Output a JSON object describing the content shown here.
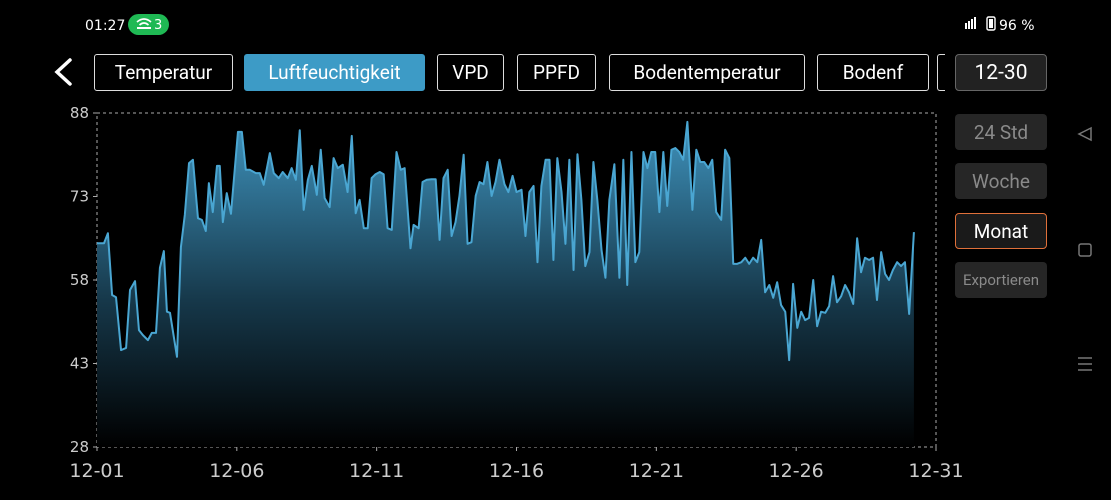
{
  "status_bar": {
    "time": "01:27",
    "notification_count": "3",
    "battery": "96 %"
  },
  "tabs": [
    "Temperatur",
    "Luftfeuchtigkeit",
    "VPD",
    "PPFD",
    "Bodentemperatur",
    "Bodenf"
  ],
  "date": "12-30",
  "ranges": [
    "24 Std",
    "Woche",
    "Monat"
  ],
  "export": "Exportieren",
  "chart_data": {
    "type": "area",
    "color": "#4aa6d2",
    "xlim": [
      1,
      31
    ],
    "xticks": [
      {
        "value": 1,
        "label": "12-01"
      },
      {
        "value": 6,
        "label": "12-06"
      },
      {
        "value": 11,
        "label": "12-11"
      },
      {
        "value": 16,
        "label": "12-16"
      },
      {
        "value": 21,
        "label": "12-21"
      },
      {
        "value": 26,
        "label": "12-26"
      },
      {
        "value": 31,
        "label": "12-31"
      }
    ],
    "ylim": [
      28,
      88
    ],
    "yticks": [
      28,
      43,
      58,
      73,
      88
    ],
    "grid": false,
    "x": [
      1.0,
      1.25,
      1.39,
      1.54,
      1.68,
      1.86,
      2.04,
      2.18,
      2.36,
      2.5,
      2.64,
      2.82,
      2.96,
      3.11,
      3.25,
      3.39,
      3.5,
      3.61,
      3.86,
      4.0,
      4.14,
      4.29,
      4.43,
      4.61,
      4.75,
      4.89,
      5.0,
      5.14,
      5.29,
      5.39,
      5.5,
      5.64,
      5.79,
      6.04,
      6.18,
      6.32,
      6.46,
      6.68,
      6.82,
      6.96,
      7.18,
      7.32,
      7.5,
      7.64,
      7.82,
      7.96,
      8.11,
      8.25,
      8.39,
      8.54,
      8.68,
      8.86,
      9.0,
      9.14,
      9.32,
      9.46,
      9.61,
      9.79,
      9.96,
      10.11,
      10.25,
      10.39,
      10.54,
      10.68,
      10.82,
      10.96,
      11.11,
      11.25,
      11.39,
      11.54,
      11.71,
      11.86,
      12.0,
      12.21,
      12.32,
      12.5,
      12.64,
      12.79,
      12.96,
      13.11,
      13.25,
      13.39,
      13.54,
      13.68,
      13.82,
      13.96,
      14.11,
      14.25,
      14.39,
      14.54,
      14.68,
      14.82,
      14.96,
      15.11,
      15.25,
      15.39,
      15.57,
      15.71,
      15.86,
      16.0,
      16.18,
      16.32,
      16.46,
      16.61,
      16.75,
      16.89,
      17.04,
      17.18,
      17.32,
      17.46,
      17.61,
      17.75,
      17.89,
      18.04,
      18.18,
      18.32,
      18.46,
      18.61,
      18.75,
      18.89,
      19.04,
      19.18,
      19.32,
      19.5,
      19.68,
      19.82,
      19.96,
      20.11,
      20.25,
      20.39,
      20.54,
      20.68,
      20.82,
      20.96,
      21.11,
      21.25,
      21.39,
      21.54,
      21.68,
      21.82,
      21.96,
      22.11,
      22.29,
      22.43,
      22.57,
      22.71,
      22.86,
      23.0,
      23.14,
      23.32,
      23.46,
      23.61,
      23.75,
      23.89,
      24.04,
      24.18,
      24.32,
      24.46,
      24.61,
      24.75,
      24.89,
      25.04,
      25.18,
      25.32,
      25.46,
      25.61,
      25.75,
      25.89,
      26.04,
      26.18,
      26.32,
      26.46,
      26.61,
      26.75,
      26.89,
      27.04,
      27.18,
      27.32,
      27.46,
      27.61,
      27.75,
      27.89,
      28.04,
      28.18,
      28.32,
      28.46,
      28.61,
      28.75,
      28.89,
      29.04,
      29.18,
      29.32,
      29.46,
      29.61,
      29.75,
      29.89,
      30.04,
      30.21
    ],
    "values": [
      64.6,
      64.6,
      66.4,
      55.3,
      54.9,
      45.4,
      45.8,
      56.2,
      57.8,
      49.0,
      48.1,
      47.2,
      48.5,
      48.5,
      60.2,
      63.2,
      52.3,
      52.1,
      44.2,
      63.9,
      69.7,
      79.0,
      79.6,
      69.1,
      68.8,
      66.8,
      75.4,
      70.2,
      78.5,
      78.5,
      68.4,
      73.6,
      69.9,
      84.6,
      84.6,
      77.8,
      77.8,
      77.2,
      77.2,
      75.1,
      80.8,
      77.2,
      76.3,
      77.4,
      76.3,
      78.1,
      76.0,
      84.9,
      70.6,
      76.0,
      78.5,
      73.3,
      81.4,
      72.7,
      71.1,
      79.9,
      78.1,
      78.7,
      73.8,
      83.9,
      70.0,
      72.4,
      67.3,
      67.3,
      76.3,
      77.0,
      77.4,
      77.0,
      67.3,
      67.0,
      81.0,
      77.8,
      78.1,
      63.7,
      67.9,
      67.3,
      75.6,
      76.0,
      76.1,
      76.1,
      65.2,
      76.3,
      77.8,
      65.9,
      68.4,
      73.1,
      80.5,
      64.5,
      64.8,
      73.1,
      75.6,
      75.2,
      79.2,
      73.1,
      75.6,
      79.6,
      75.2,
      73.8,
      76.7,
      73.8,
      74.2,
      65.9,
      73.8,
      74.9,
      61.2,
      74.9,
      79.6,
      79.6,
      61.6,
      79.9,
      73.8,
      64.5,
      79.6,
      59.8,
      80.6,
      72.4,
      60.5,
      63.0,
      79.2,
      72.4,
      63.4,
      58.4,
      72.4,
      78.8,
      58.4,
      79.6,
      57.1,
      81.0,
      61.2,
      63.0,
      81.0,
      78.1,
      81.0,
      81.0,
      70.2,
      81.0,
      71.3,
      81.4,
      81.7,
      81.0,
      79.6,
      86.4,
      70.6,
      81.4,
      79.2,
      79.2,
      78.1,
      79.6,
      70.2,
      68.8,
      81.4,
      79.9,
      60.9,
      60.9,
      61.2,
      62.0,
      60.9,
      62.0,
      61.2,
      65.2,
      55.8,
      57.1,
      54.8,
      57.6,
      53.5,
      52.3,
      43.6,
      57.3,
      49.4,
      52.3,
      50.8,
      51.2,
      58.0,
      49.7,
      52.3,
      52.1,
      53.3,
      58.7,
      54.0,
      55.1,
      57.1,
      55.8,
      53.7,
      65.5,
      59.4,
      62.0,
      61.6,
      62.0,
      54.4,
      63.0,
      59.1,
      58.0,
      59.8,
      61.2,
      60.5,
      61.2,
      51.9,
      66.6
    ]
  }
}
